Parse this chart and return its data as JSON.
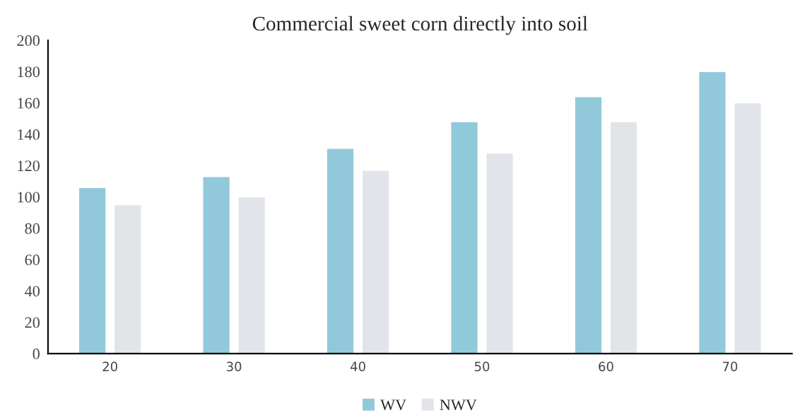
{
  "chart_data": {
    "type": "bar",
    "title": "Commercial sweet corn directly into soil",
    "categories": [
      "20",
      "30",
      "40",
      "50",
      "60",
      "70"
    ],
    "series": [
      {
        "name": "WV",
        "color": "#92c9da",
        "values": [
          106,
          113,
          131,
          148,
          164,
          180
        ]
      },
      {
        "name": "NWV",
        "color": "#e1e5e9",
        "values": [
          95,
          100,
          117,
          128,
          148,
          160
        ]
      }
    ],
    "ylim": [
      0,
      200
    ],
    "yticks": [
      0,
      20,
      40,
      60,
      80,
      100,
      120,
      140,
      160,
      180,
      200
    ],
    "grid": false,
    "legend": "bottom"
  }
}
